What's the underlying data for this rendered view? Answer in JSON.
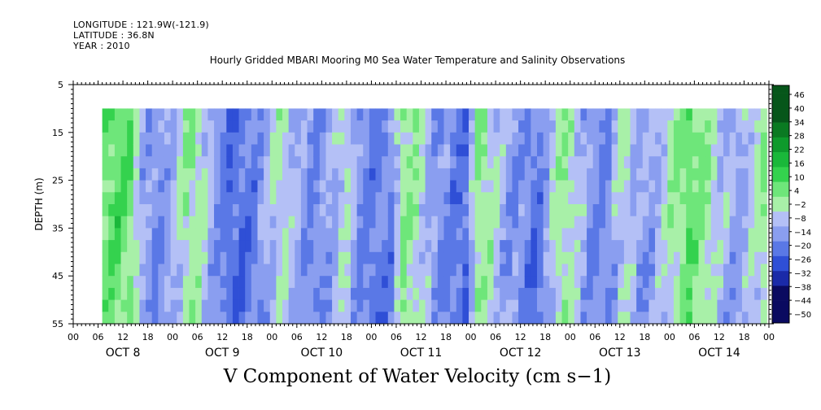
{
  "header": {
    "longitude": "LONGITUDE : 121.9W(-121.9)",
    "latitude": "LATITUDE : 36.8N",
    "year": "YEAR : 2010"
  },
  "colors": {
    "negative_scale": [
      "#0a0a60",
      "#1a2aa8",
      "#2f4fd6",
      "#5a78e6",
      "#8a9ef0",
      "#b4c0f6"
    ],
    "positive_scale": [
      "#a8f0a8",
      "#6ee67a",
      "#34d24e",
      "#1ab83a",
      "#0e9a2c",
      "#0a7a22",
      "#06561a"
    ]
  },
  "chart_data": {
    "type": "heatmap",
    "title": "Hourly Gridded MBARI Mooring M0 Sea Water Temperature and Salinity Observations",
    "xlabel": "V Component of Water Velocity (cm s−1)",
    "ylabel": "DEPTH (m)",
    "ylim": [
      55,
      5
    ],
    "y_ticks": [
      "5",
      "15",
      "25",
      "35",
      "45",
      "55"
    ],
    "x_tick_labels": [
      "00",
      "06",
      "12",
      "18",
      "00",
      "06",
      "12",
      "18",
      "00",
      "06",
      "12",
      "18",
      "00",
      "06",
      "12",
      "18",
      "00",
      "06",
      "12",
      "18",
      "00",
      "06",
      "12",
      "18",
      "00",
      "06",
      "12",
      "18",
      "00"
    ],
    "date_labels": [
      "OCT  8",
      "OCT  9",
      "OCT 10",
      "OCT 11",
      "OCT 12",
      "OCT 13",
      "OCT 14"
    ],
    "colorbar_labels": [
      "46",
      "40",
      "34",
      "28",
      "22",
      "16",
      "10",
      "4",
      "−2",
      "−8",
      "−14",
      "−20",
      "−26",
      "−32",
      "−38",
      "−44",
      "−50"
    ],
    "data_start_hour": 7,
    "data_end_hour": 167,
    "data_top_depth": 10,
    "data_bottom_depth": 55,
    "time_profile": [
      [
        7,
        10
      ],
      [
        10,
        12
      ],
      [
        13,
        8
      ],
      [
        16,
        -6
      ],
      [
        20,
        -12
      ],
      [
        24,
        -4
      ],
      [
        27,
        6
      ],
      [
        30,
        2
      ],
      [
        34,
        -10
      ],
      [
        38,
        -16
      ],
      [
        42,
        -14
      ],
      [
        46,
        -6
      ],
      [
        50,
        2
      ],
      [
        53,
        -6
      ],
      [
        57,
        -12
      ],
      [
        61,
        -8
      ],
      [
        65,
        2
      ],
      [
        68,
        -10
      ],
      [
        72,
        -14
      ],
      [
        76,
        -12
      ],
      [
        79,
        6
      ],
      [
        82,
        4
      ],
      [
        86,
        -8
      ],
      [
        90,
        -12
      ],
      [
        94,
        -16
      ],
      [
        97,
        6
      ],
      [
        100,
        3
      ],
      [
        104,
        -8
      ],
      [
        108,
        -10
      ],
      [
        111,
        -16
      ],
      [
        114,
        -6
      ],
      [
        117,
        6
      ],
      [
        120,
        2
      ],
      [
        124,
        -10
      ],
      [
        128,
        -12
      ],
      [
        132,
        2
      ],
      [
        136,
        -8
      ],
      [
        140,
        -6
      ],
      [
        144,
        4
      ],
      [
        148,
        10
      ],
      [
        152,
        6
      ],
      [
        156,
        -4
      ],
      [
        160,
        -8
      ],
      [
        164,
        0
      ],
      [
        167,
        8
      ]
    ],
    "grid": false,
    "legend": "colorbar-right"
  }
}
